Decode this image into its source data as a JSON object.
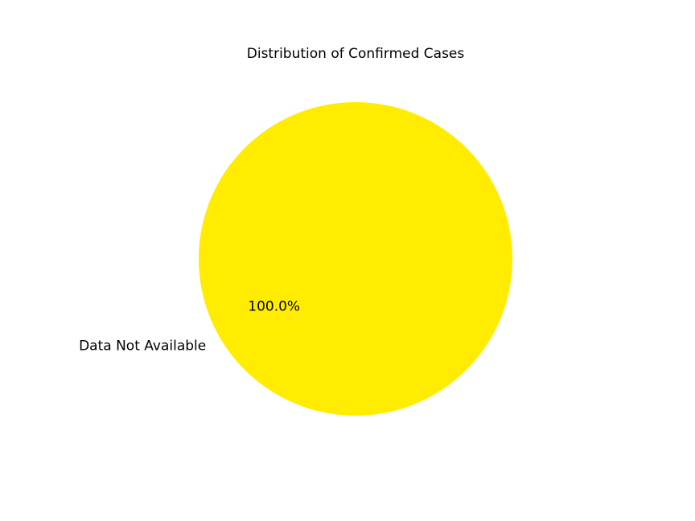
{
  "chart_data": {
    "type": "pie",
    "title": "Distribution of Confirmed Cases",
    "slices": [
      {
        "label": "Data Not Available",
        "value": 100.0,
        "percent_label": "100.0%",
        "color": "#ffec00"
      }
    ],
    "legend": "none"
  }
}
